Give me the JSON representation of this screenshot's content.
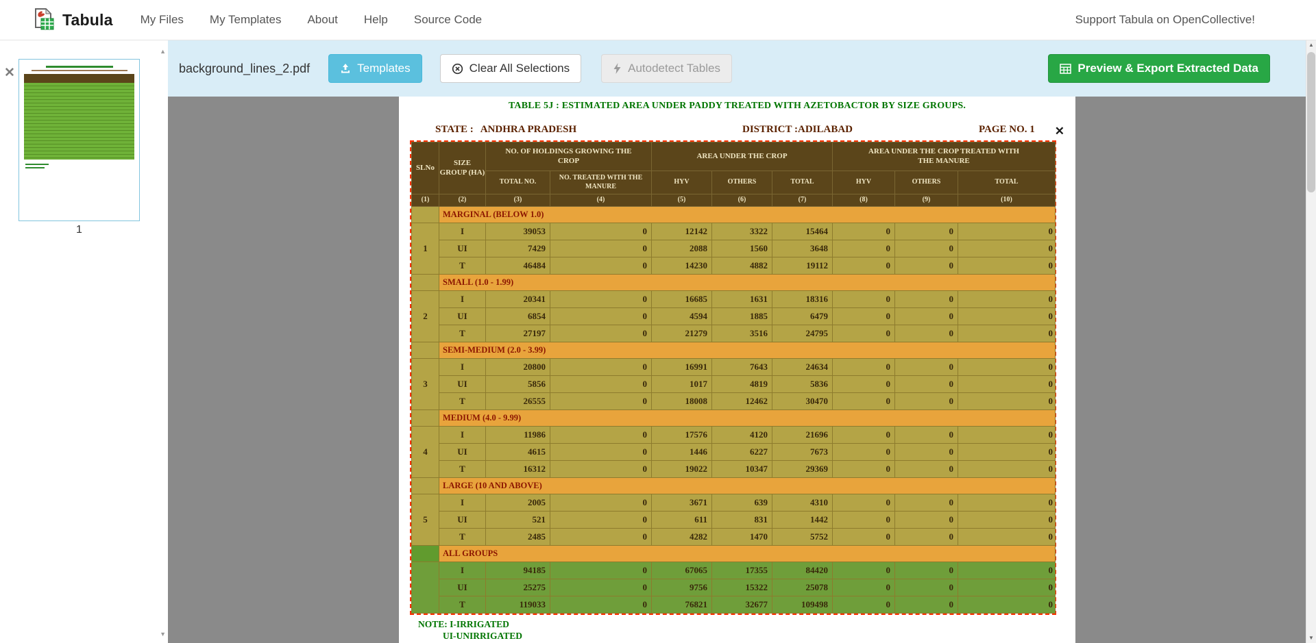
{
  "navbar": {
    "brand": "Tabula",
    "items": [
      {
        "label": "My Files"
      },
      {
        "label": "My Templates"
      },
      {
        "label": "About"
      },
      {
        "label": "Help"
      },
      {
        "label": "Source Code"
      }
    ],
    "support_link": "Support Tabula on OpenCollective!"
  },
  "toolbar": {
    "filename": "background_lines_2.pdf",
    "templates": "Templates",
    "clear_all": "Clear All Selections",
    "autodetect": "Autodetect Tables",
    "export": "Preview & Export Extracted Data"
  },
  "sidebar": {
    "page_label": "1"
  },
  "page": {
    "title": "TABLE 5J : ESTIMATED AREA UNDER PADDY  TREATED WITH AZETOBACTOR BY SIZE GROUPS.",
    "state_label": "STATE :",
    "state_value": "ANDHRA PRADESH",
    "district_label": "DISTRICT :",
    "district_value": "ADILABAD",
    "page_no": "PAGE NO. 1",
    "note1": "NOTE: I-IRRIGATED",
    "note2": "UI-UNIRRIGATED"
  },
  "table": {
    "head": {
      "slno": "SLNo",
      "size_group": "SIZE GROUP (HA)",
      "holdings_group": "NO. OF HOLDINGS GROWING THE CROP",
      "area_group": "AREA UNDER THE CROP",
      "treated_group": "AREA UNDER THE CROP TREATED WITH THE  MANURE",
      "sub": [
        "TOTAL NO.",
        "NO. TREATED WITH THE MANURE",
        "HYV",
        "OTHERS",
        "TOTAL",
        "HYV",
        "OTHERS",
        "TOTAL"
      ],
      "col_nums": [
        "(1)",
        "(2)",
        "(3)",
        "(4)",
        "(5)",
        "(6)",
        "(7)",
        "(8)",
        "(9)",
        "(10)"
      ]
    },
    "sections": [
      {
        "label": "MARGINAL (BELOW 1.0)",
        "slno": "1",
        "theme": "olive",
        "rows": [
          [
            "I",
            "39053",
            "0",
            "12142",
            "3322",
            "15464",
            "0",
            "0",
            "0"
          ],
          [
            "UI",
            "7429",
            "0",
            "2088",
            "1560",
            "3648",
            "0",
            "0",
            "0"
          ],
          [
            "T",
            "46484",
            "0",
            "14230",
            "4882",
            "19112",
            "0",
            "0",
            "0"
          ]
        ]
      },
      {
        "label": "SMALL (1.0 - 1.99)",
        "slno": "2",
        "theme": "olive",
        "rows": [
          [
            "I",
            "20341",
            "0",
            "16685",
            "1631",
            "18316",
            "0",
            "0",
            "0"
          ],
          [
            "UI",
            "6854",
            "0",
            "4594",
            "1885",
            "6479",
            "0",
            "0",
            "0"
          ],
          [
            "T",
            "27197",
            "0",
            "21279",
            "3516",
            "24795",
            "0",
            "0",
            "0"
          ]
        ]
      },
      {
        "label": "SEMI-MEDIUM (2.0 - 3.99)",
        "slno": "3",
        "theme": "olive",
        "rows": [
          [
            "I",
            "20800",
            "0",
            "16991",
            "7643",
            "24634",
            "0",
            "0",
            "0"
          ],
          [
            "UI",
            "5856",
            "0",
            "1017",
            "4819",
            "5836",
            "0",
            "0",
            "0"
          ],
          [
            "T",
            "26555",
            "0",
            "18008",
            "12462",
            "30470",
            "0",
            "0",
            "0"
          ]
        ]
      },
      {
        "label": "MEDIUM (4.0 - 9.99)",
        "slno": "4",
        "theme": "olive",
        "rows": [
          [
            "I",
            "11986",
            "0",
            "17576",
            "4120",
            "21696",
            "0",
            "0",
            "0"
          ],
          [
            "UI",
            "4615",
            "0",
            "1446",
            "6227",
            "7673",
            "0",
            "0",
            "0"
          ],
          [
            "T",
            "16312",
            "0",
            "19022",
            "10347",
            "29369",
            "0",
            "0",
            "0"
          ]
        ]
      },
      {
        "label": "LARGE (10 AND ABOVE)",
        "slno": "5",
        "theme": "olive",
        "rows": [
          [
            "I",
            "2005",
            "0",
            "3671",
            "639",
            "4310",
            "0",
            "0",
            "0"
          ],
          [
            "UI",
            "521",
            "0",
            "611",
            "831",
            "1442",
            "0",
            "0",
            "0"
          ],
          [
            "T",
            "2485",
            "0",
            "4282",
            "1470",
            "5752",
            "0",
            "0",
            "0"
          ]
        ]
      },
      {
        "label": "ALL GROUPS",
        "slno": "",
        "theme": "green",
        "rows": [
          [
            "I",
            "94185",
            "0",
            "67065",
            "17355",
            "84420",
            "0",
            "0",
            "0"
          ],
          [
            "UI",
            "25275",
            "0",
            "9756",
            "15322",
            "25078",
            "0",
            "0",
            "0"
          ],
          [
            "T",
            "119033",
            "0",
            "76821",
            "32677",
            "109498",
            "0",
            "0",
            "0"
          ]
        ]
      }
    ]
  },
  "colors": {
    "toolbar_bg": "#d9edf7",
    "templates_btn": "#5bc0de",
    "export_btn": "#28a745",
    "selection_red": "#ff2f00",
    "table_header_bg": "#5b451a",
    "row_olive": "#b4a446",
    "row_green": "#6f9e3a",
    "section_orange": "#e8a43c",
    "doc_green_text": "#007500",
    "doc_maroon_text": "#5c2200"
  }
}
